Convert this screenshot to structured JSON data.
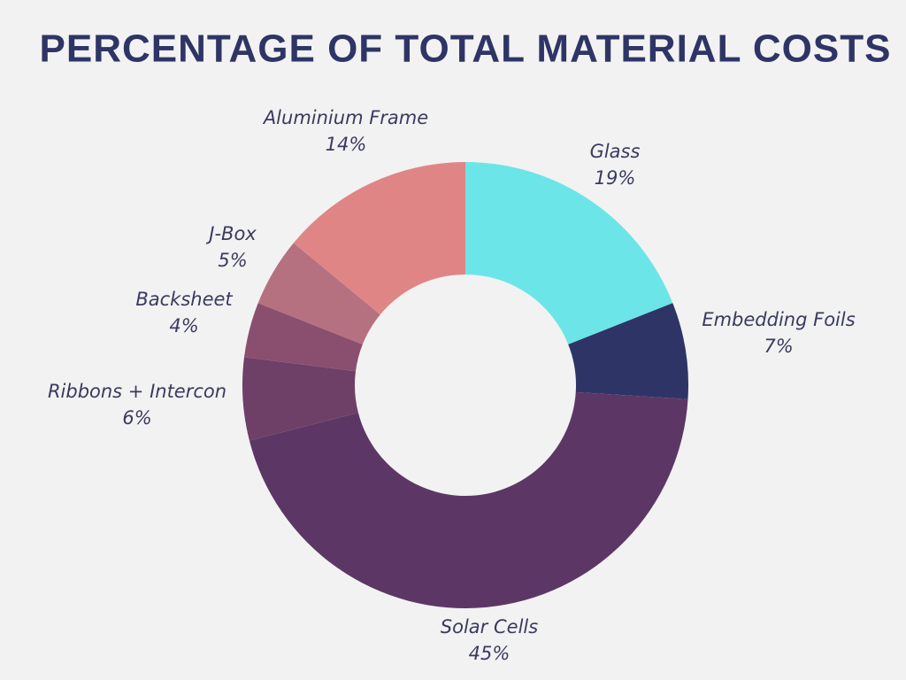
{
  "chart_data": {
    "type": "donut",
    "title": "PERCENTAGE OF TOTAL MATERIAL COSTS",
    "categories": [
      "Glass",
      "Embedding Foils",
      "Solar Cells",
      "Ribbons + Intercon",
      "Backsheet",
      "J-Box",
      "Aluminium Frame"
    ],
    "values": [
      19,
      7,
      45,
      6,
      4,
      5,
      14
    ],
    "value_labels": [
      "19%",
      "7%",
      "45%",
      "6%",
      "4%",
      "5%",
      "14%"
    ],
    "colors": [
      "#6ce5e8",
      "#2e3566",
      "#5c3765",
      "#6e4068",
      "#8a4f6e",
      "#b5717f",
      "#e08585"
    ]
  }
}
